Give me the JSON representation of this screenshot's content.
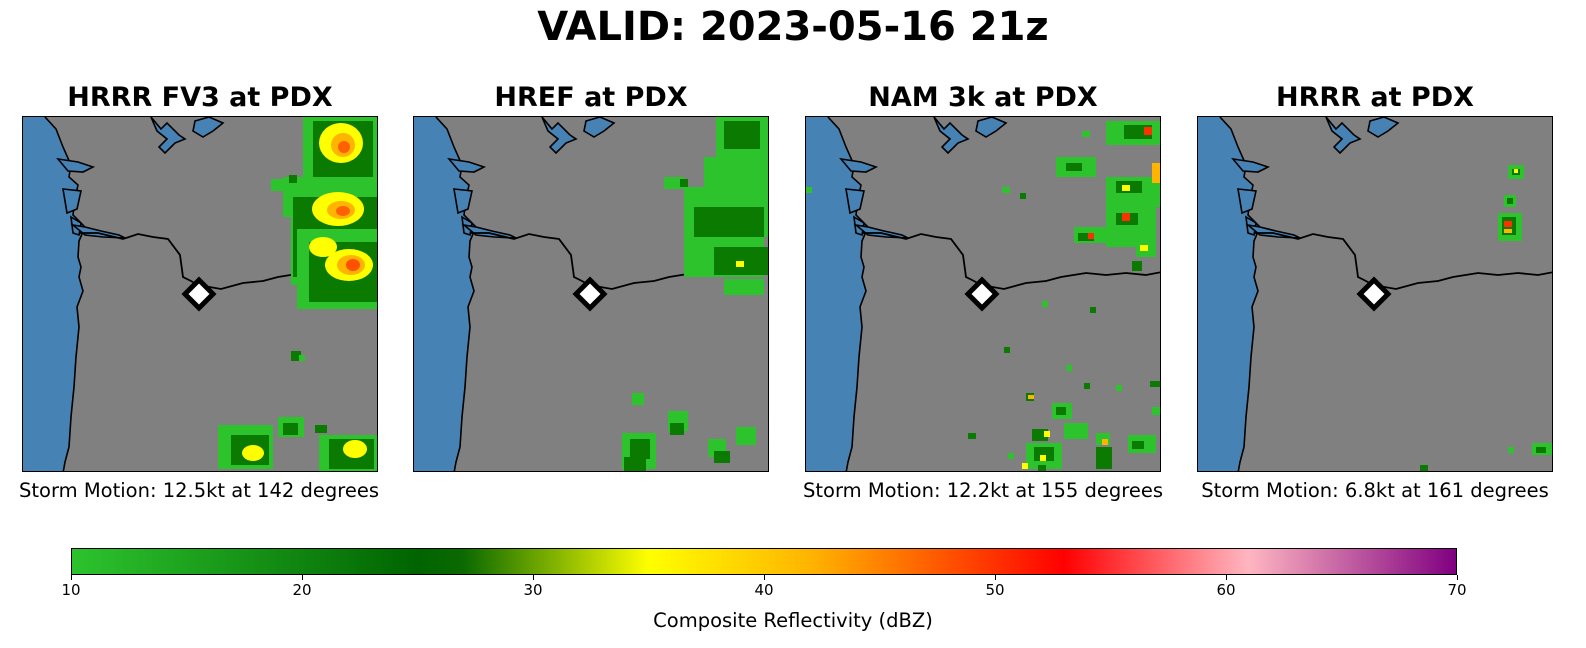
{
  "title": "VALID: 2023-05-16 21z",
  "panels": [
    {
      "title": "HRRR FV3 at PDX",
      "caption": "Storm Motion: 12.5kt at 142 degrees",
      "station": "PDX"
    },
    {
      "title": "HREF at PDX",
      "caption": "",
      "station": "PDX"
    },
    {
      "title": "NAM 3k at PDX",
      "caption": "Storm Motion: 12.2kt at 155 degrees",
      "station": "PDX"
    },
    {
      "title": "HRRR at PDX",
      "caption": "Storm Motion: 6.8kt at 161 degrees",
      "station": "PDX"
    }
  ],
  "colorbar": {
    "label": "Composite Reflectivity (dBZ)",
    "min": 10,
    "max": 70,
    "ticks": [
      "10",
      "20",
      "30",
      "40",
      "50",
      "60",
      "70"
    ],
    "stops": [
      {
        "value": 10,
        "color": "#2dc32d"
      },
      {
        "value": 25,
        "color": "#006400"
      },
      {
        "value": 27,
        "color": "#0b6a00"
      },
      {
        "value": 35,
        "color": "#ffff00"
      },
      {
        "value": 42,
        "color": "#ffb400"
      },
      {
        "value": 53,
        "color": "#ff0000"
      },
      {
        "value": 61,
        "color": "#ffb6c1"
      },
      {
        "value": 70,
        "color": "#800080"
      }
    ]
  },
  "colors": {
    "land": "#808080",
    "water": "#4682b4",
    "border": "#000000",
    "marker_fill": "#ffffff",
    "marker_stroke": "#000000"
  },
  "icons": {
    "station_marker": "white-diamond-icon"
  }
}
